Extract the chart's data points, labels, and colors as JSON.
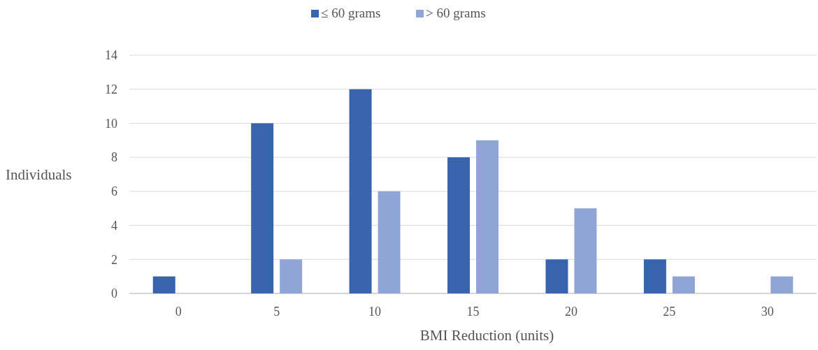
{
  "chart_data": {
    "type": "bar",
    "xlabel": "BMI Reduction (units)",
    "ylabel": "Individuals",
    "categories": [
      "0",
      "5",
      "10",
      "15",
      "20",
      "25",
      "30"
    ],
    "series": [
      {
        "name": "≤ 60 grams",
        "color": "#3a63ad",
        "values": [
          1,
          10,
          12,
          8,
          2,
          2,
          null
        ]
      },
      {
        "name": "> 60 grams",
        "color": "#8fa5d6",
        "values": [
          null,
          2,
          6,
          9,
          5,
          1,
          1
        ]
      }
    ],
    "ylim": [
      0,
      14
    ],
    "yticks": [
      0,
      2,
      4,
      6,
      8,
      10,
      12,
      14
    ],
    "grid": "y",
    "legend": "top"
  }
}
